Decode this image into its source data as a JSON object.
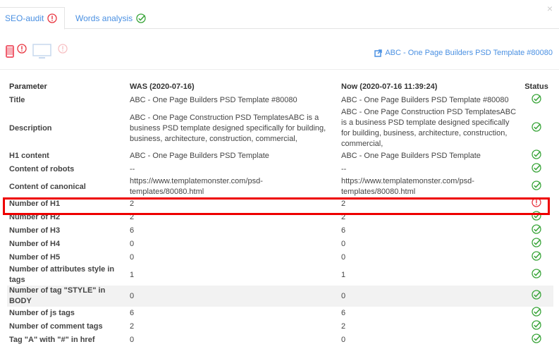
{
  "tabs": [
    {
      "label": "SEO-audit",
      "status": "warning"
    },
    {
      "label": "Words analysis",
      "status": "ok"
    }
  ],
  "devices": [
    {
      "icon": "mobile-icon",
      "status": "warning"
    },
    {
      "icon": "desktop-icon",
      "status": "warning-faded"
    }
  ],
  "page_link": "ABC - One Page Builders PSD Template #80080",
  "table": {
    "headers": [
      "Parameter",
      "WAS (2020-07-16)",
      "Now (2020-07-16 11:39:24)",
      "Status"
    ],
    "rows": [
      {
        "param": "Title",
        "was": "ABC - One Page Builders PSD Template #80080",
        "now": "ABC - One Page Builders PSD Template #80080",
        "status": "ok"
      },
      {
        "param": "Description",
        "was": "ABC - One Page Construction PSD TemplatesABC is a business PSD template designed specifically for building, business, architecture, construction, commercial,",
        "now": "ABC - One Page Construction PSD TemplatesABC is a business PSD template designed specifically for building, business, architecture, construction, commercial,",
        "status": "ok"
      },
      {
        "param": "H1 content",
        "was": "ABC - One Page Builders PSD Template",
        "now": "ABC - One Page Builders PSD Template",
        "status": "ok"
      },
      {
        "param": "Content of robots",
        "was": "--",
        "now": "--",
        "status": "ok"
      },
      {
        "param": "Content of canonical",
        "was": "https://www.templatemonster.com/psd-templates/80080.html",
        "now": "https://www.templatemonster.com/psd-templates/80080.html",
        "status": "ok"
      },
      {
        "param": "Number of H1",
        "was": "2",
        "now": "2",
        "status": "warning"
      },
      {
        "param": "Number of H2",
        "was": "2",
        "now": "2",
        "status": "ok"
      },
      {
        "param": "Number of H3",
        "was": "6",
        "now": "6",
        "status": "ok"
      },
      {
        "param": "Number of H4",
        "was": "0",
        "now": "0",
        "status": "ok"
      },
      {
        "param": "Number of H5",
        "was": "0",
        "now": "0",
        "status": "ok"
      },
      {
        "param": "Number of attributes style in tags",
        "was": "1",
        "now": "1",
        "status": "ok"
      },
      {
        "param": "Number of tag \"STYLE\" in BODY",
        "was": "0",
        "now": "0",
        "status": "ok"
      },
      {
        "param": "Number of js tags",
        "was": "6",
        "now": "6",
        "status": "ok"
      },
      {
        "param": "Number of comment tags",
        "was": "2",
        "now": "2",
        "status": "ok"
      },
      {
        "param": "Tag \"A\" with \"#\" in href",
        "was": "0",
        "now": "0",
        "status": "ok"
      }
    ]
  },
  "colors": {
    "accent": "#4a90e2",
    "ok": "#3aa53a",
    "warning": "#e8343f",
    "highlight": "#e00000"
  }
}
